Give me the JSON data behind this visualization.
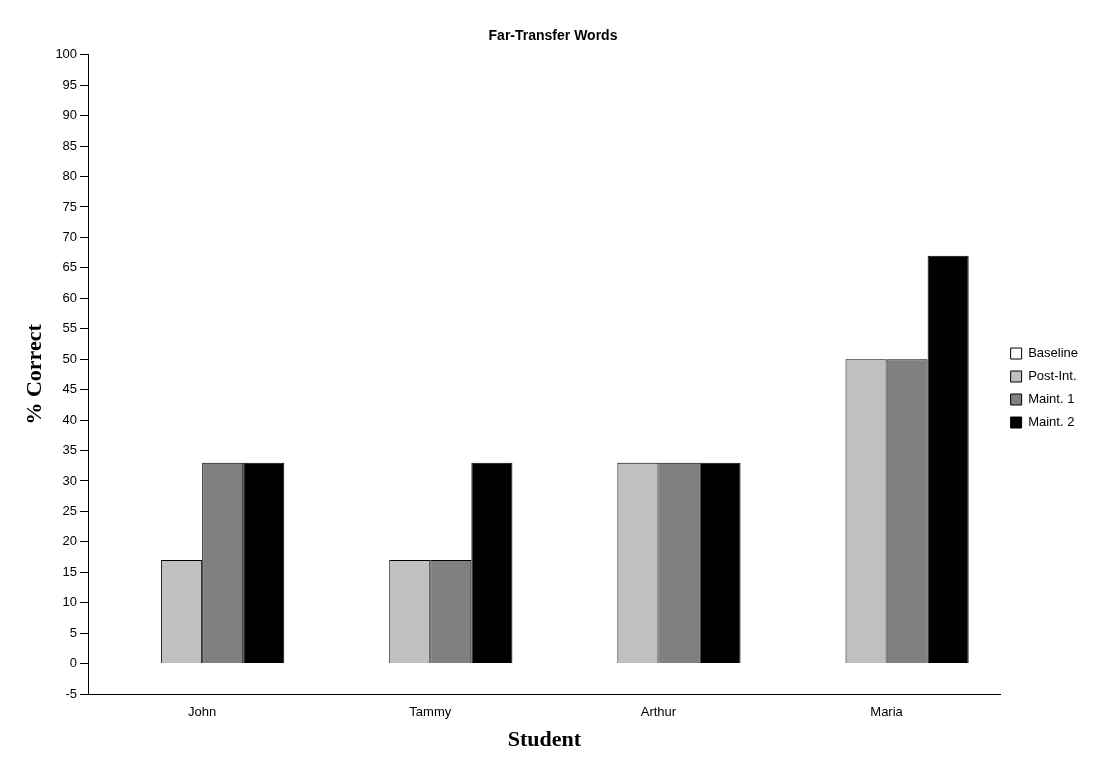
{
  "chart_data": {
    "type": "bar",
    "title": "Far-Transfer Words",
    "xlabel": "Student",
    "ylabel": "% Correct",
    "categories": [
      "John",
      "Tammy",
      "Arthur",
      "Maria"
    ],
    "series": [
      {
        "name": "Baseline",
        "color": "#ffffff",
        "values": [
          0,
          0,
          0,
          0
        ]
      },
      {
        "name": "Post-Int.",
        "color": "#c0c0c0",
        "values": [
          17,
          17,
          33,
          50
        ]
      },
      {
        "name": "Maint. 1",
        "color": "#808080",
        "values": [
          33,
          17,
          33,
          50
        ]
      },
      {
        "name": "Maint. 2",
        "color": "#000000",
        "values": [
          33,
          33,
          33,
          67
        ]
      }
    ],
    "ylim": [
      -5,
      100
    ],
    "yticks": [
      -5,
      0,
      5,
      10,
      15,
      20,
      25,
      30,
      35,
      40,
      45,
      50,
      55,
      60,
      65,
      70,
      75,
      80,
      85,
      90,
      95,
      100
    ],
    "grid": false,
    "legend": "right"
  }
}
